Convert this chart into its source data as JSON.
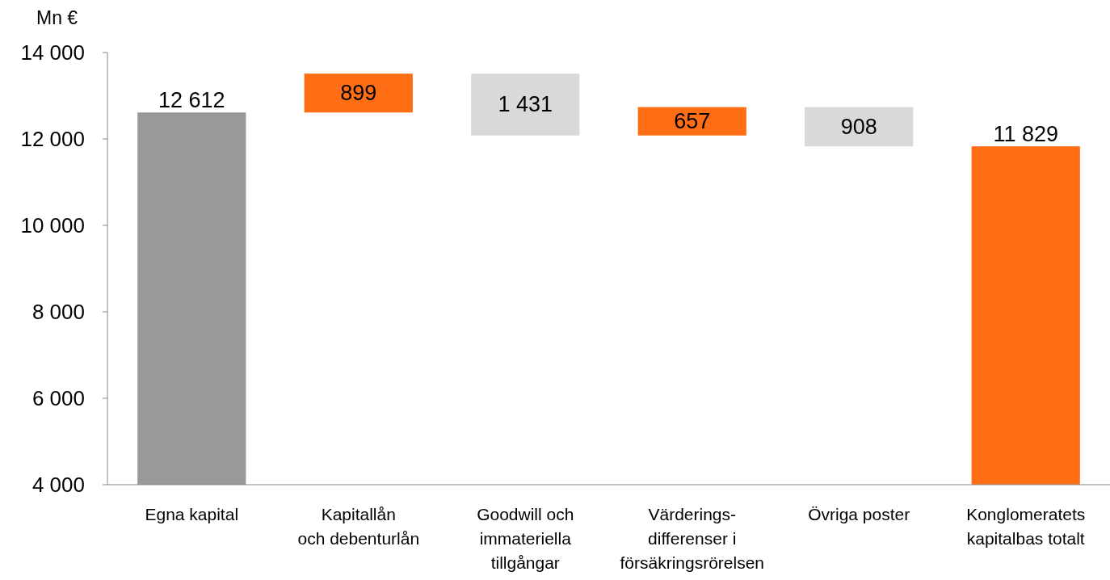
{
  "chart_data": {
    "type": "bar",
    "ylabel": "Mn €",
    "categories": [
      "Egna kapital",
      "Kapitallån\noch debenturlån",
      "Goodwill och\nimmateriella\ntillgångar",
      "Värderings-\ndifferenser i\nförsäkringsrörelsen",
      "Övriga poster",
      "Konglomeratets\nkapitalbas totalt"
    ],
    "values": [
      12612,
      899,
      1431,
      657,
      908,
      11829
    ],
    "base": [
      null,
      12612,
      12080,
      12080,
      11829,
      null
    ],
    "colors": [
      "#999999",
      "#ff6d14",
      "#d9d9d9",
      "#ff6d14",
      "#d9d9d9",
      "#ff6d14"
    ],
    "value_labels": [
      "12 612",
      "899",
      "1 431",
      "657",
      "908",
      "11 829"
    ],
    "ylim": [
      4000,
      14000
    ],
    "yticks": [
      {
        "value": 4000,
        "label": "4 000"
      },
      {
        "value": 6000,
        "label": "6 000"
      },
      {
        "value": 8000,
        "label": "8 000"
      },
      {
        "value": 10000,
        "label": "10 000"
      },
      {
        "value": 12000,
        "label": "12 000"
      },
      {
        "value": 14000,
        "label": "14 000"
      }
    ],
    "grid": false
  }
}
